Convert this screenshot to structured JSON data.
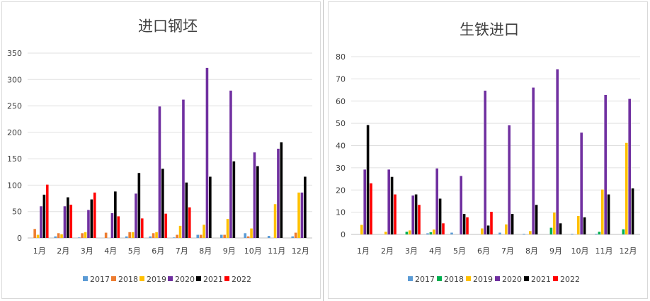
{
  "colors": {
    "2017": "#5b9bd5",
    "2018_left": "#ed7d31",
    "2018_right": "#00b050",
    "2019": "#ffc000",
    "2020": "#7030a0",
    "2021": "#000000",
    "2022": "#ff0000"
  },
  "chart_data": [
    {
      "type": "bar",
      "title": "进口钢坯",
      "categories": [
        "1月",
        "2月",
        "3月",
        "4月",
        "5月",
        "6月",
        "7月",
        "8月",
        "9月",
        "10月",
        "11月",
        "12月"
      ],
      "ylim": [
        0,
        350
      ],
      "yticks": [
        "0",
        "50",
        "100",
        "150",
        "200",
        "250",
        "300",
        "350"
      ],
      "grid": true,
      "legend": "bottom",
      "series": [
        {
          "name": "2017",
          "values": [
            0,
            3,
            1,
            0,
            3,
            3,
            1,
            6,
            6,
            9,
            4,
            3
          ]
        },
        {
          "name": "2018",
          "values": [
            17,
            9,
            9,
            10,
            11,
            9,
            6,
            6,
            6,
            3,
            0,
            10
          ]
        },
        {
          "name": "2019",
          "values": [
            6,
            7,
            11,
            0,
            11,
            11,
            23,
            25,
            36,
            18,
            64,
            86
          ]
        },
        {
          "name": "2020",
          "values": [
            60,
            60,
            53,
            47,
            84,
            249,
            262,
            322,
            279,
            162,
            169,
            86
          ]
        },
        {
          "name": "2021",
          "values": [
            82,
            77,
            73,
            88,
            123,
            131,
            105,
            116,
            145,
            136,
            181,
            116
          ]
        },
        {
          "name": "2022",
          "values": [
            101,
            63,
            86,
            41,
            37,
            46,
            58,
            null,
            null,
            null,
            null,
            null
          ]
        }
      ]
    },
    {
      "type": "bar",
      "title": "生铁进口",
      "categories": [
        "1月",
        "2月",
        "3月",
        "4月",
        "5月",
        "6月",
        "7月",
        "8月",
        "9月",
        "10月",
        "11月",
        "12月"
      ],
      "ylim": [
        0,
        80
      ],
      "yticks": [
        "0",
        "10",
        "20",
        "30",
        "40",
        "50",
        "60",
        "70",
        "80"
      ],
      "grid": true,
      "legend": "bottom",
      "series": [
        {
          "name": "2017",
          "values": [
            0,
            0,
            0,
            0.5,
            0.8,
            0,
            0.8,
            0.3,
            0,
            0.3,
            0.3,
            0
          ]
        },
        {
          "name": "2018",
          "values": [
            0,
            0,
            1.2,
            1,
            0,
            0,
            0,
            0,
            3,
            0,
            1.2,
            2.3
          ]
        },
        {
          "name": "2019",
          "values": [
            4.3,
            1.2,
            1.8,
            2.2,
            0,
            2.7,
            4.5,
            1.5,
            9.8,
            8.3,
            20.2,
            41.2
          ]
        },
        {
          "name": "2020",
          "values": [
            29.2,
            29.2,
            17.5,
            29.7,
            26.3,
            64.7,
            49.1,
            66.1,
            74.3,
            45.8,
            62.8,
            61
          ]
        },
        {
          "name": "2021",
          "values": [
            49.2,
            25.9,
            18,
            16.1,
            9.2,
            4,
            9.2,
            13.3,
            5,
            7.7,
            18,
            20.7
          ]
        },
        {
          "name": "2022",
          "values": [
            23,
            18,
            13.3,
            5,
            7.7,
            10.2,
            null,
            null,
            null,
            null,
            null,
            null
          ]
        }
      ]
    }
  ]
}
